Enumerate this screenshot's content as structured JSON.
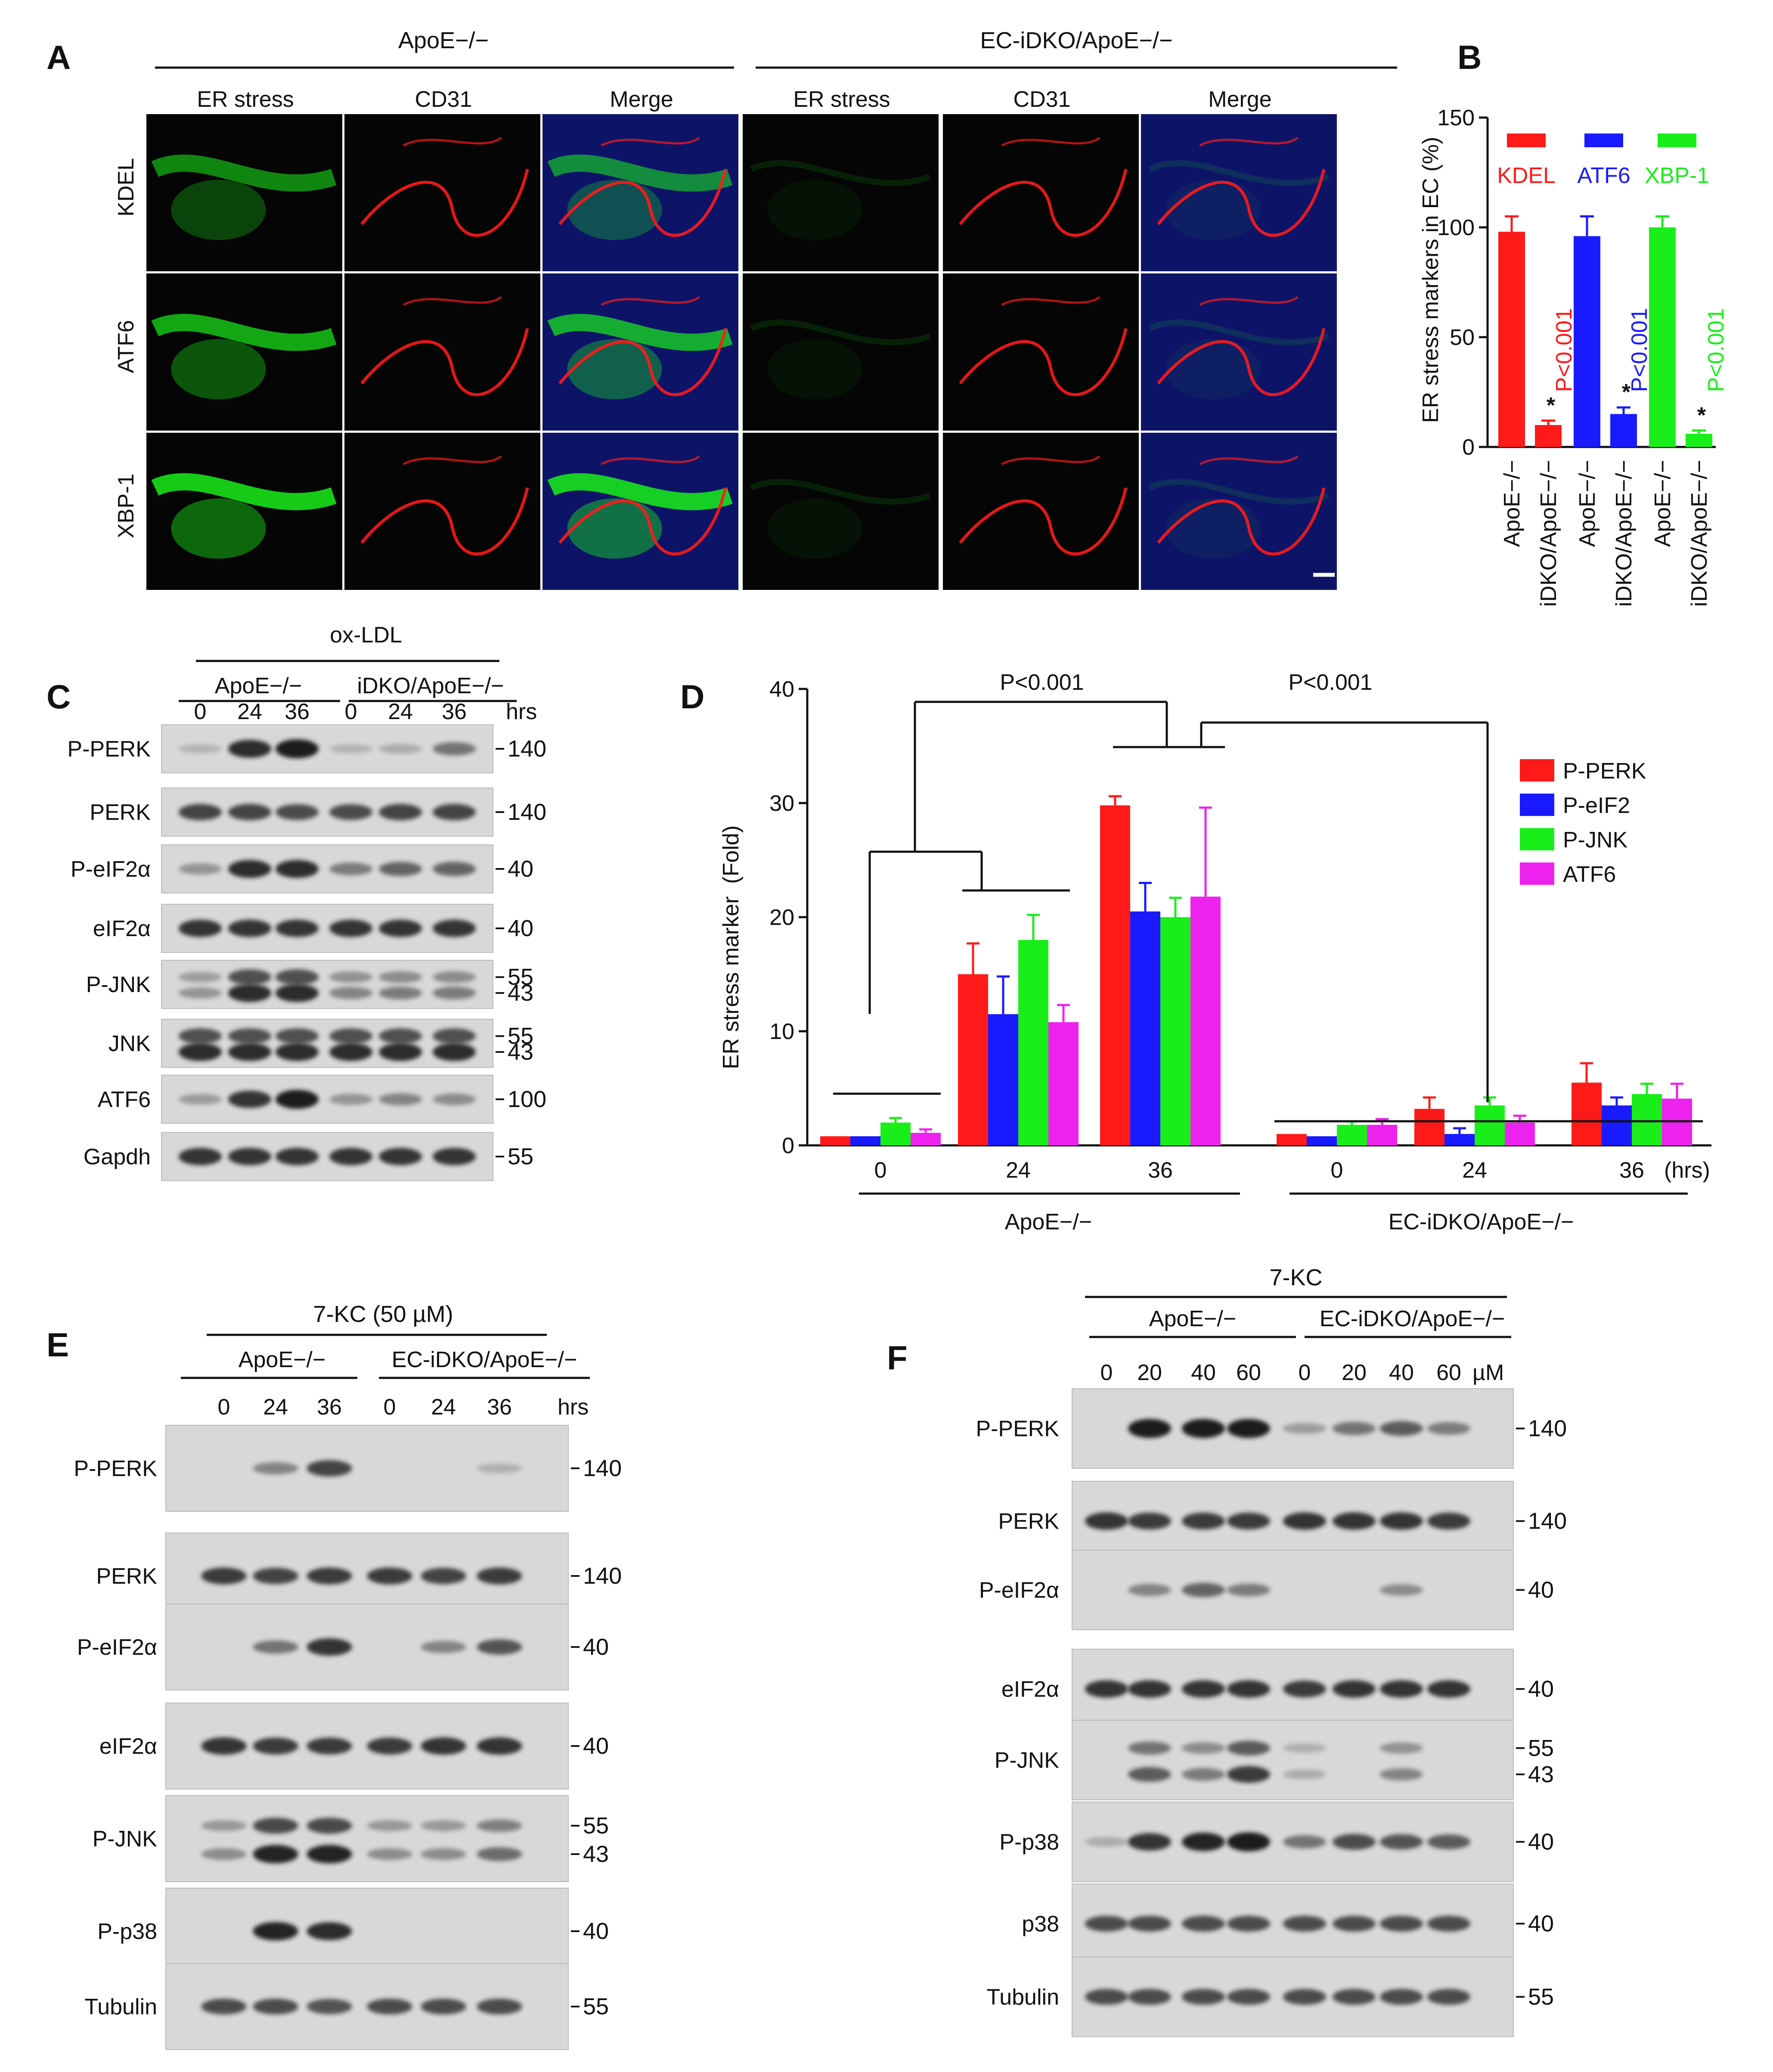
{
  "colors": {
    "red": "#ff1a1a",
    "blue": "#1a1aff",
    "green": "#1aee1a",
    "magenta": "#ee22ee",
    "blot_bg": "#d8d8d8",
    "band": "#1a1a1a",
    "micro_bg": "#050505"
  },
  "panelA": {
    "label": "A",
    "group1": "ApoE−/−",
    "group2": "EC-iDKO/ApoE−/−",
    "columns": [
      "ER stress",
      "CD31",
      "Merge",
      "ER stress",
      "CD31",
      "Merge"
    ],
    "rows": [
      "KDEL",
      "ATF6",
      "XBP-1"
    ]
  },
  "panelB": {
    "label": "B",
    "ylabel": "ER stress markers in EC (%)",
    "legend": [
      "KDEL",
      "ATF6",
      "XBP-1"
    ],
    "pvalues": [
      "P<0.001",
      "P<0.001",
      "P<0.001"
    ],
    "star": "*",
    "xlabels": [
      "ApoE−/−",
      "iDKO/ApoE−/−",
      "ApoE−/−",
      "iDKO/ApoE−/−",
      "ApoE−/−",
      "iDKO/ApoE−/−"
    ],
    "ticks": [
      "0",
      "50",
      "100",
      "150"
    ]
  },
  "panelC": {
    "label": "C",
    "treatment": "ox-LDL",
    "group1": "ApoE−/−",
    "group2": "iDKO/ApoE−/−",
    "times": [
      "0",
      "24",
      "36",
      "0",
      "24",
      "36"
    ],
    "unit": "hrs",
    "rows": [
      {
        "label": "P-PERK",
        "mw": [
          "140"
        ],
        "bands": [
          0.05,
          0.9,
          1.0,
          0.05,
          0.1,
          0.45
        ]
      },
      {
        "label": "PERK",
        "mw": [
          "140"
        ],
        "bands": [
          0.75,
          0.75,
          0.7,
          0.7,
          0.75,
          0.75
        ]
      },
      {
        "label": "P-eIF2α",
        "mw": [
          "40"
        ],
        "bands": [
          0.25,
          0.9,
          0.9,
          0.4,
          0.55,
          0.55
        ]
      },
      {
        "label": "eIF2α",
        "mw": [
          "40"
        ],
        "bands": [
          0.85,
          0.85,
          0.85,
          0.85,
          0.85,
          0.85
        ]
      },
      {
        "label": "P-JNK",
        "mw": [
          "55",
          "43"
        ],
        "bands": [
          0.25,
          0.9,
          0.9,
          0.35,
          0.4,
          0.4
        ]
      },
      {
        "label": "JNK",
        "mw": [
          "55",
          "43"
        ],
        "bands": [
          0.9,
          0.9,
          0.9,
          0.9,
          0.9,
          0.9
        ]
      },
      {
        "label": "ATF6",
        "mw": [
          "100"
        ],
        "bands": [
          0.2,
          0.85,
          1.0,
          0.25,
          0.35,
          0.3
        ]
      },
      {
        "label": "Gapdh",
        "mw": [
          "55"
        ],
        "bands": [
          0.85,
          0.85,
          0.85,
          0.85,
          0.85,
          0.85
        ]
      }
    ]
  },
  "chart_data": {
    "type": "bar",
    "panel_label": "D",
    "ylabel": "ER stress marker  (Fold)",
    "categories": [
      "0",
      "24",
      "36",
      "0",
      "24",
      "36"
    ],
    "x_unit": "(hrs)",
    "groups": [
      "ApoE−/−",
      "EC-iDKO/ApoE−/−"
    ],
    "ylim": [
      0,
      40
    ],
    "yticks": [
      "0",
      "10",
      "20",
      "30",
      "40"
    ],
    "series": [
      {
        "name": "P-PERK",
        "values": [
          0.8,
          15.0,
          29.8,
          1.0,
          3.2,
          5.5
        ],
        "errors": [
          0,
          2.7,
          0.8,
          0,
          1.0,
          1.7
        ]
      },
      {
        "name": "P-eIF2",
        "values": [
          0.8,
          11.5,
          20.5,
          0.8,
          1.0,
          3.5
        ],
        "errors": [
          0,
          3.3,
          2.5,
          0,
          0.5,
          0.7
        ]
      },
      {
        "name": "P-JNK",
        "values": [
          2.0,
          18.0,
          20.0,
          1.8,
          3.5,
          4.5
        ],
        "errors": [
          0.4,
          2.2,
          1.7,
          0.3,
          0.7,
          0.9
        ]
      },
      {
        "name": "ATF6",
        "values": [
          1.1,
          10.8,
          21.8,
          1.8,
          2.0,
          4.1
        ],
        "errors": [
          0.3,
          1.5,
          7.8,
          0.5,
          0.6,
          1.3
        ]
      }
    ],
    "pvalues": [
      "P<0.001",
      "P<0.001"
    ]
  },
  "panelE": {
    "label": "E",
    "treatment": "7-KC (50 µM)",
    "group1": "ApoE−/−",
    "group2": "EC-iDKO/ApoE−/−",
    "times": [
      "0",
      "24",
      "36",
      "0",
      "24",
      "36"
    ],
    "unit": "hrs",
    "rows": [
      {
        "label": "P-PERK",
        "mw": [
          "140"
        ],
        "bands": [
          0.0,
          0.35,
          0.75,
          0.0,
          0.0,
          0.08
        ]
      },
      {
        "label": "PERK",
        "mw": [
          "140"
        ],
        "bands": [
          0.8,
          0.75,
          0.8,
          0.8,
          0.75,
          0.8
        ]
      },
      {
        "label": "P-eIF2α",
        "mw": [
          "40"
        ],
        "bands": [
          0.0,
          0.45,
          0.85,
          0.0,
          0.35,
          0.65
        ]
      },
      {
        "label": "eIF2α",
        "mw": [
          "40"
        ],
        "bands": [
          0.85,
          0.8,
          0.8,
          0.8,
          0.85,
          0.85
        ]
      },
      {
        "label": "P-JNK",
        "mw": [
          "55",
          "43"
        ],
        "bands": [
          0.3,
          0.95,
          0.95,
          0.3,
          0.3,
          0.5
        ]
      },
      {
        "label": "P-p38",
        "mw": [
          "40"
        ],
        "bands": [
          0.0,
          0.95,
          0.9,
          0.0,
          0.0,
          0.0
        ]
      },
      {
        "label": "Tubulin",
        "mw": [
          "55"
        ],
        "bands": [
          0.7,
          0.7,
          0.65,
          0.7,
          0.7,
          0.7
        ]
      }
    ]
  },
  "panelF": {
    "label": "F",
    "treatment": "7-KC",
    "group1": "ApoE−/−",
    "group2": "EC-iDKO/ApoE−/−",
    "doses": [
      "0",
      "20",
      "40",
      "60",
      "0",
      "20",
      "40",
      "60"
    ],
    "unit": "µM",
    "rows": [
      {
        "label": "P-PERK",
        "mw": [
          "140"
        ],
        "bands": [
          0.0,
          1.0,
          1.0,
          1.0,
          0.2,
          0.45,
          0.6,
          0.4
        ]
      },
      {
        "label": "PERK",
        "mw": [
          "140"
        ],
        "bands": [
          0.85,
          0.8,
          0.8,
          0.8,
          0.85,
          0.85,
          0.85,
          0.8
        ]
      },
      {
        "label": "P-eIF2α",
        "mw": [
          "40"
        ],
        "bands": [
          0.0,
          0.35,
          0.55,
          0.4,
          0.0,
          0.0,
          0.3,
          0.0
        ]
      },
      {
        "label": "eIF2α",
        "mw": [
          "40"
        ],
        "bands": [
          0.85,
          0.85,
          0.85,
          0.85,
          0.8,
          0.85,
          0.85,
          0.85
        ]
      },
      {
        "label": "P-JNK",
        "mw": [
          "55",
          "43"
        ],
        "bands": [
          0.0,
          0.6,
          0.4,
          0.8,
          0.1,
          0.0,
          0.35,
          0.0
        ]
      },
      {
        "label": "P-p38",
        "mw": [
          "40"
        ],
        "bands": [
          0.1,
          0.85,
          0.95,
          1.0,
          0.45,
          0.7,
          0.65,
          0.6
        ]
      },
      {
        "label": "p38",
        "mw": [
          "40"
        ],
        "bands": [
          0.7,
          0.7,
          0.7,
          0.7,
          0.7,
          0.7,
          0.7,
          0.7
        ]
      },
      {
        "label": "Tubulin",
        "mw": [
          "55"
        ],
        "bands": [
          0.7,
          0.7,
          0.7,
          0.7,
          0.7,
          0.7,
          0.7,
          0.7
        ]
      }
    ]
  }
}
